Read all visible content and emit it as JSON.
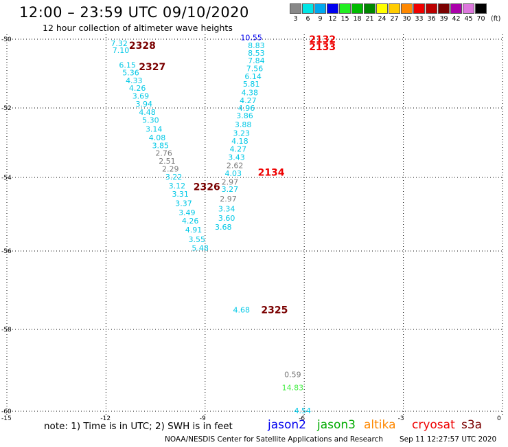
{
  "header": {
    "title": "12:00 – 23:59 UTC 09/10/2020",
    "subtitle": "12 hour collection of altimeter wave heights"
  },
  "color_scale": {
    "unit": "(ft)",
    "bins": [
      {
        "label": "3",
        "color": "#888888"
      },
      {
        "label": "6",
        "color": "#00e5e5"
      },
      {
        "label": "9",
        "color": "#00a8ee"
      },
      {
        "label": "12",
        "color": "#0000ee"
      },
      {
        "label": "15",
        "color": "#22ee22"
      },
      {
        "label": "18",
        "color": "#00bb00"
      },
      {
        "label": "21",
        "color": "#008800"
      },
      {
        "label": "24",
        "color": "#ffff00"
      },
      {
        "label": "27",
        "color": "#ffcc00"
      },
      {
        "label": "30",
        "color": "#ff8800"
      },
      {
        "label": "33",
        "color": "#ee0000"
      },
      {
        "label": "36",
        "color": "#bb0000"
      },
      {
        "label": "39",
        "color": "#7a0000"
      },
      {
        "label": "42",
        "color": "#aa00aa"
      },
      {
        "label": "45",
        "color": "#dd77dd"
      },
      {
        "label": "70",
        "color": "#000000"
      }
    ]
  },
  "axes": {
    "lat_labels": [
      "-50",
      "-52",
      "-54",
      "-56",
      "-58",
      "-60"
    ],
    "lon_labels": [
      "-15",
      "-12",
      "-9",
      "-6",
      "-3",
      "0"
    ]
  },
  "observations": [
    {
      "lon": -11.6,
      "lat": -50.12,
      "swh": "7.32",
      "color": "#00c8e6"
    },
    {
      "lon": -11.55,
      "lat": -50.32,
      "swh": "7.10",
      "color": "#00c8e6"
    },
    {
      "lon": -11.35,
      "lat": -50.75,
      "swh": "6.15",
      "color": "#00c8e6"
    },
    {
      "lon": -11.25,
      "lat": -50.97,
      "swh": "5.36",
      "color": "#00c8e6"
    },
    {
      "lon": -11.15,
      "lat": -51.2,
      "swh": "4.33",
      "color": "#00c8e6"
    },
    {
      "lon": -11.05,
      "lat": -51.42,
      "swh": "4.26",
      "color": "#00c8e6"
    },
    {
      "lon": -10.95,
      "lat": -51.65,
      "swh": "3.69",
      "color": "#00c8e6"
    },
    {
      "lon": -10.85,
      "lat": -51.88,
      "swh": "3.94",
      "color": "#00c8e6"
    },
    {
      "lon": -10.75,
      "lat": -52.12,
      "swh": "4.48",
      "color": "#00c8e6"
    },
    {
      "lon": -10.65,
      "lat": -52.35,
      "swh": "5.30",
      "color": "#00c8e6"
    },
    {
      "lon": -10.55,
      "lat": -52.6,
      "swh": "3.14",
      "color": "#00c8e6"
    },
    {
      "lon": -10.45,
      "lat": -52.85,
      "swh": "4.08",
      "color": "#00c8e6"
    },
    {
      "lon": -10.35,
      "lat": -53.08,
      "swh": "3.85",
      "color": "#00c8e6"
    },
    {
      "lon": -10.25,
      "lat": -53.3,
      "swh": "2.76",
      "color": "#7a7a7a"
    },
    {
      "lon": -10.15,
      "lat": -53.52,
      "swh": "2.51",
      "color": "#7a7a7a"
    },
    {
      "lon": -10.05,
      "lat": -53.75,
      "swh": "2.29",
      "color": "#7a7a7a"
    },
    {
      "lon": -9.95,
      "lat": -53.98,
      "swh": "3.22",
      "color": "#00c8e6"
    },
    {
      "lon": -9.85,
      "lat": -54.22,
      "swh": "3.12",
      "color": "#00c8e6"
    },
    {
      "lon": -9.75,
      "lat": -54.45,
      "swh": "3.31",
      "color": "#00c8e6"
    },
    {
      "lon": -9.65,
      "lat": -54.7,
      "swh": "3.37",
      "color": "#00c8e6"
    },
    {
      "lon": -9.55,
      "lat": -54.95,
      "swh": "3.49",
      "color": "#00c8e6"
    },
    {
      "lon": -9.45,
      "lat": -55.18,
      "swh": "4.26",
      "color": "#00c8e6"
    },
    {
      "lon": -9.35,
      "lat": -55.42,
      "swh": "4.91",
      "color": "#00c8e6"
    },
    {
      "lon": -9.25,
      "lat": -55.68,
      "swh": "3.55",
      "color": "#00c8e6"
    },
    {
      "lon": -9.15,
      "lat": -55.92,
      "swh": "5.48",
      "color": "#00c8e6"
    },
    {
      "lon": -7.6,
      "lat": -49.95,
      "swh": "10.55",
      "color": "#0000ee"
    },
    {
      "lon": -7.45,
      "lat": -50.18,
      "swh": "8.83",
      "color": "#00c8e6"
    },
    {
      "lon": -7.45,
      "lat": -50.4,
      "swh": "8.53",
      "color": "#00c8e6"
    },
    {
      "lon": -7.45,
      "lat": -50.62,
      "swh": "7.84",
      "color": "#00c8e6"
    },
    {
      "lon": -7.5,
      "lat": -50.85,
      "swh": "7.56",
      "color": "#00c8e6"
    },
    {
      "lon": -7.55,
      "lat": -51.08,
      "swh": "6.14",
      "color": "#00c8e6"
    },
    {
      "lon": -7.6,
      "lat": -51.3,
      "swh": "5.81",
      "color": "#00c8e6"
    },
    {
      "lon": -7.65,
      "lat": -51.55,
      "swh": "4.38",
      "color": "#00c8e6"
    },
    {
      "lon": -7.7,
      "lat": -51.78,
      "swh": "4.27",
      "color": "#00c8e6"
    },
    {
      "lon": -7.75,
      "lat": -52.0,
      "swh": "4.96",
      "color": "#00c8e6"
    },
    {
      "lon": -7.8,
      "lat": -52.22,
      "swh": "3.86",
      "color": "#00c8e6"
    },
    {
      "lon": -7.85,
      "lat": -52.48,
      "swh": "3.88",
      "color": "#00c8e6"
    },
    {
      "lon": -7.9,
      "lat": -52.72,
      "swh": "3.23",
      "color": "#00c8e6"
    },
    {
      "lon": -7.95,
      "lat": -52.95,
      "swh": "4.18",
      "color": "#00c8e6"
    },
    {
      "lon": -8.0,
      "lat": -53.18,
      "swh": "4.27",
      "color": "#00c8e6"
    },
    {
      "lon": -8.05,
      "lat": -53.42,
      "swh": "3.43",
      "color": "#00c8e6"
    },
    {
      "lon": -8.1,
      "lat": -53.65,
      "swh": "2.62",
      "color": "#7a7a7a"
    },
    {
      "lon": -8.15,
      "lat": -53.88,
      "swh": "4.03",
      "color": "#00c8e6"
    },
    {
      "lon": -8.25,
      "lat": -54.12,
      "swh": "2.97",
      "color": "#7a7a7a"
    },
    {
      "lon": -8.25,
      "lat": -54.32,
      "swh": "3.27",
      "color": "#00c8e6"
    },
    {
      "lon": -8.3,
      "lat": -54.58,
      "swh": "2.97",
      "color": "#7a7a7a"
    },
    {
      "lon": -8.35,
      "lat": -54.85,
      "swh": "3.34",
      "color": "#00c8e6"
    },
    {
      "lon": -8.35,
      "lat": -55.1,
      "swh": "3.60",
      "color": "#00c8e6"
    },
    {
      "lon": -8.45,
      "lat": -55.35,
      "swh": "3.68",
      "color": "#00c8e6"
    },
    {
      "lon": -7.9,
      "lat": -57.5,
      "swh": "4.68",
      "color": "#00c8e6"
    },
    {
      "lon": -6.35,
      "lat": -59.1,
      "swh": "0.59",
      "color": "#7a7a7a"
    },
    {
      "lon": -6.35,
      "lat": -59.42,
      "swh": "14.83",
      "color": "#44ee44"
    },
    {
      "lon": -6.05,
      "lat": -59.98,
      "swh": "4.54",
      "color": "#00c8e6"
    }
  ],
  "passes": [
    {
      "label": "2328",
      "lon": -10.9,
      "lat": -50.18,
      "color": "#7a0000"
    },
    {
      "label": "2327",
      "lon": -10.6,
      "lat": -50.8,
      "color": "#7a0000"
    },
    {
      "label": "2132",
      "lon": -5.45,
      "lat": -50.0,
      "color": "#ee0000"
    },
    {
      "label": "2133",
      "lon": -5.45,
      "lat": -50.22,
      "color": "#ee0000"
    },
    {
      "label": "2134",
      "lon": -7.0,
      "lat": -53.85,
      "color": "#ee0000"
    },
    {
      "label": "2326",
      "lon": -8.95,
      "lat": -54.25,
      "color": "#7a0000"
    },
    {
      "label": "2325",
      "lon": -6.9,
      "lat": -57.5,
      "color": "#7a0000"
    }
  ],
  "footer": {
    "note": "note:  1) Time is in UTC;  2) SWH is in feet",
    "legend": [
      {
        "label": "jason2",
        "color": "#0000ee"
      },
      {
        "label": "jason3",
        "color": "#00aa00"
      },
      {
        "label": "altika",
        "color": "#ff8800"
      },
      {
        "label": "cryosat",
        "color": "#ee0000"
      },
      {
        "label": "s3a",
        "color": "#7a0000"
      }
    ],
    "credit": "NOAA/NESDIS Center for Satellite Applications and Research",
    "timestamp": "Sep 11 12:27:57 UTC 2020"
  }
}
